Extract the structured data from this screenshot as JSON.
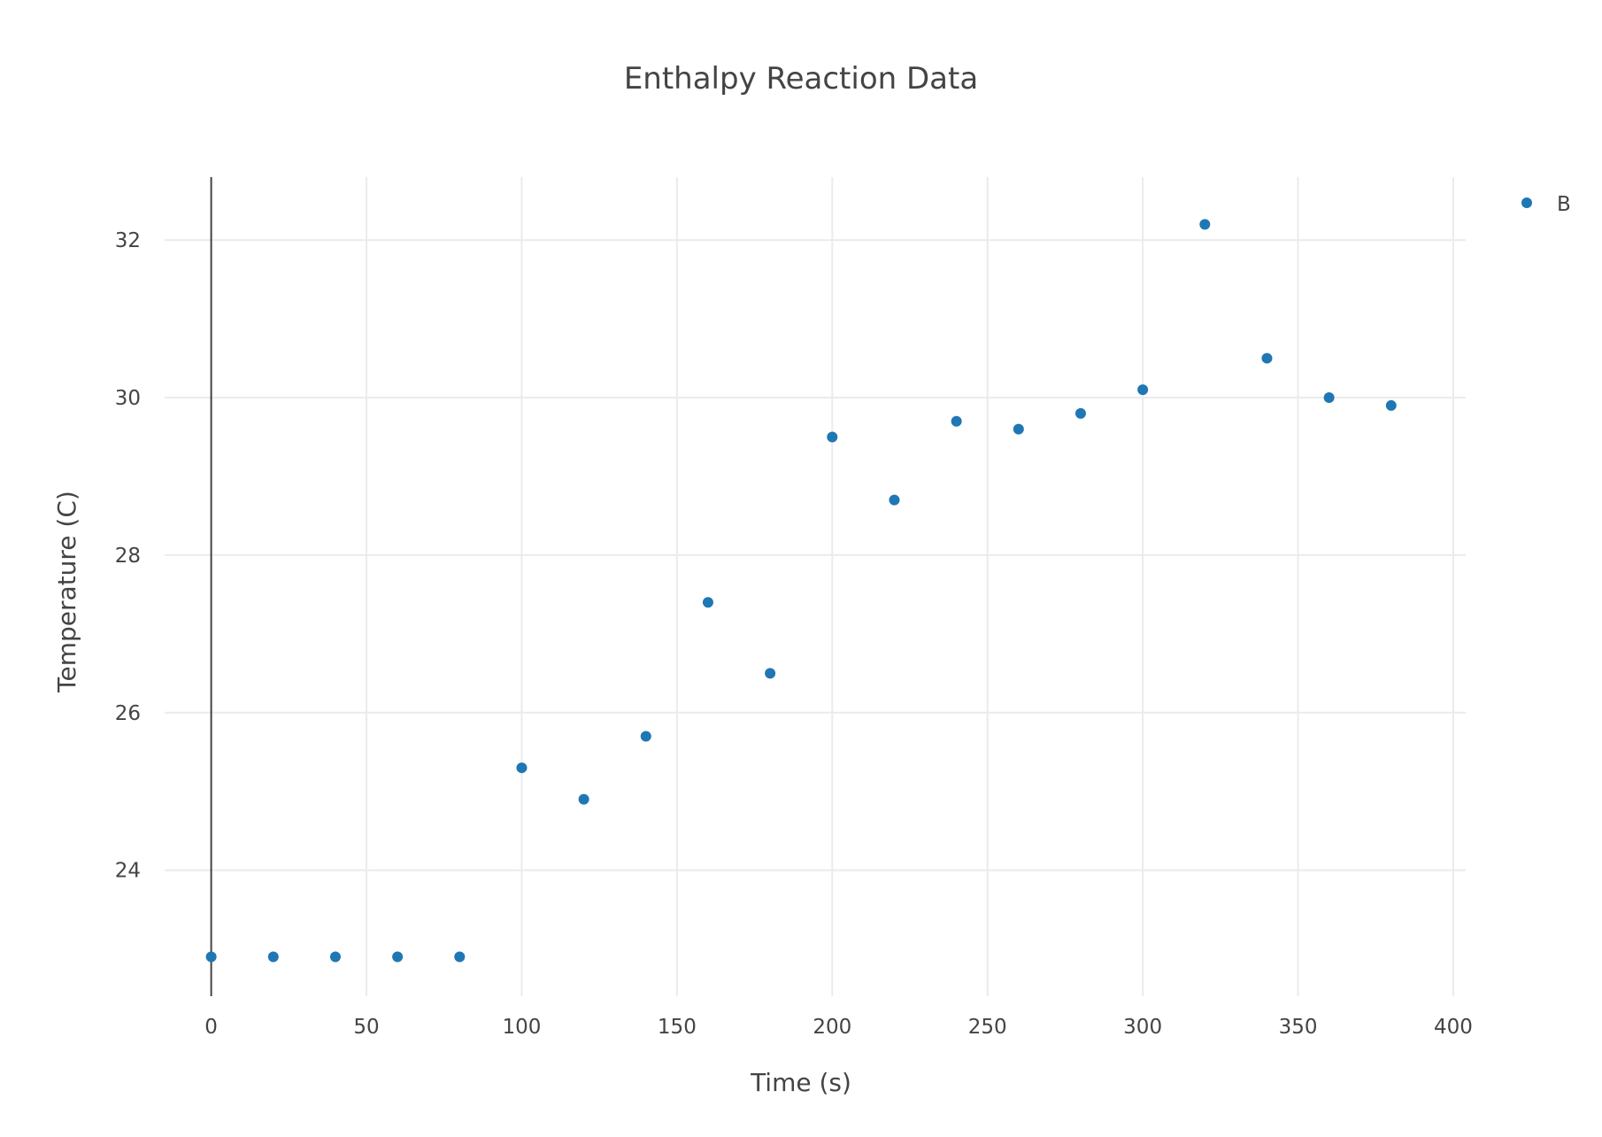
{
  "chart_data": {
    "type": "scatter",
    "title": "Enthalpy Reaction Data",
    "xlabel": "Time (s)",
    "ylabel": "Temperature (C)",
    "xlim": [
      -15,
      404
    ],
    "ylim": [
      22.4,
      32.8
    ],
    "x_ticks": [
      0,
      50,
      100,
      150,
      200,
      250,
      300,
      350,
      400
    ],
    "y_ticks": [
      24,
      26,
      28,
      30,
      32
    ],
    "grid": true,
    "legend_position": "top-right",
    "marker_color": "#1f77b4",
    "series": [
      {
        "name": "B",
        "x": [
          0,
          20,
          40,
          60,
          80,
          100,
          120,
          140,
          160,
          180,
          200,
          220,
          240,
          260,
          280,
          300,
          320,
          340,
          360,
          380
        ],
        "y": [
          22.9,
          22.9,
          22.9,
          22.9,
          22.9,
          25.3,
          24.9,
          25.7,
          27.4,
          26.5,
          29.5,
          28.7,
          29.7,
          29.6,
          29.8,
          30.1,
          32.2,
          30.5,
          30.0,
          29.9
        ]
      }
    ]
  }
}
